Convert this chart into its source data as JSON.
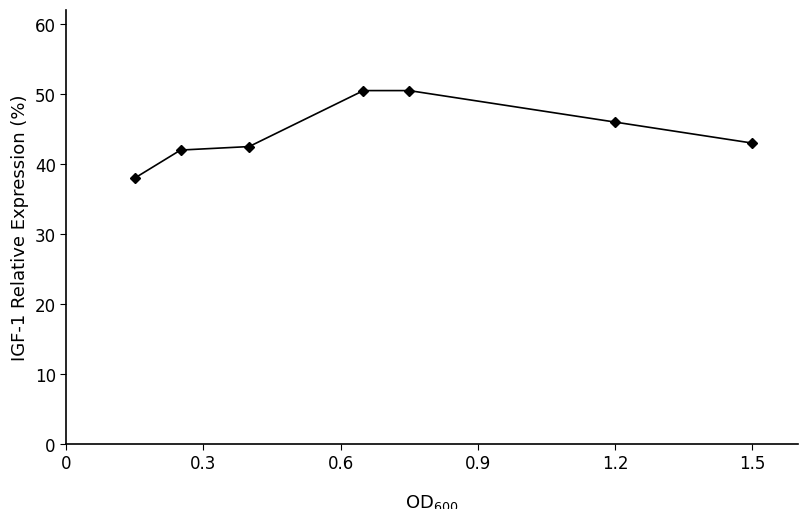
{
  "x": [
    0.15,
    0.25,
    0.4,
    0.65,
    0.75,
    1.2,
    1.5
  ],
  "y": [
    38.0,
    42.0,
    42.5,
    50.5,
    50.5,
    46.0,
    43.0
  ],
  "xlim": [
    0,
    1.6
  ],
  "ylim": [
    0,
    62
  ],
  "xticks": [
    0,
    0.3,
    0.6,
    0.9,
    1.2,
    1.5
  ],
  "yticks": [
    0,
    10,
    20,
    30,
    40,
    50,
    60
  ],
  "line_color": "#000000",
  "marker": "D",
  "marker_size": 5,
  "marker_color": "#000000",
  "line_width": 1.2,
  "bg_color": "#ffffff",
  "tick_fontsize": 12,
  "label_fontsize": 13,
  "spine_linewidth": 1.2
}
